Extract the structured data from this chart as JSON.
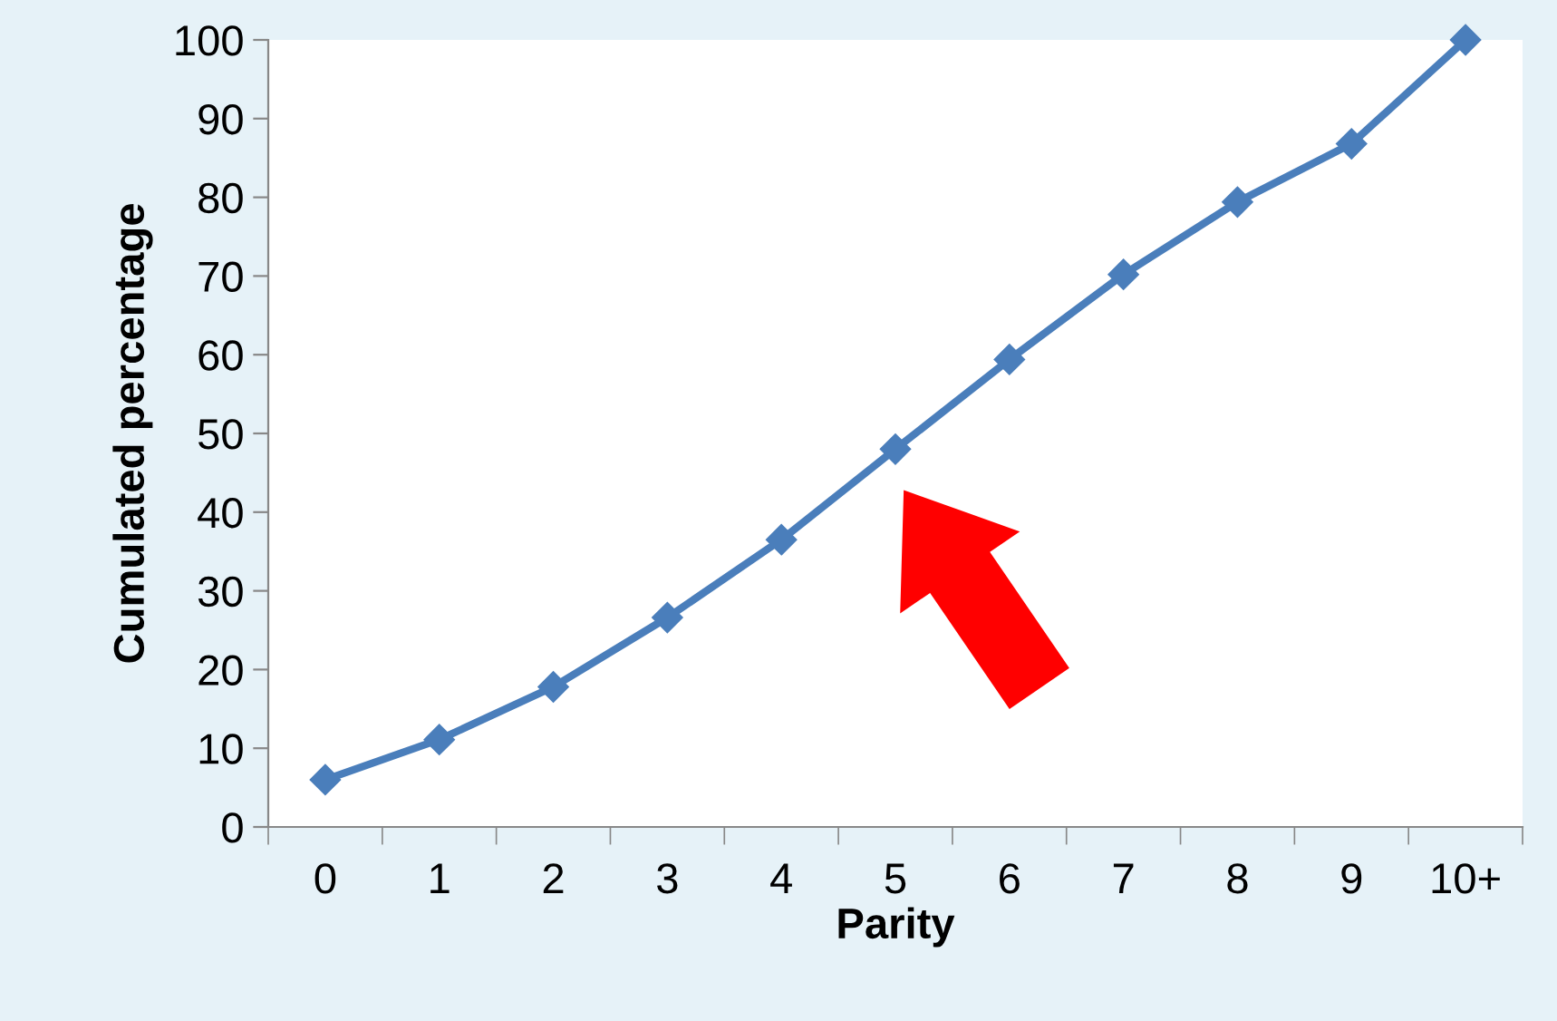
{
  "chart_data": {
    "type": "line",
    "xlabel": "Parity",
    "ylabel": "Cumulated percentage",
    "categories": [
      "0",
      "1",
      "2",
      "3",
      "4",
      "5",
      "6",
      "7",
      "8",
      "9",
      "10+"
    ],
    "series": [
      {
        "color": "#4a7ebb",
        "values": [
          6.0,
          11.1,
          17.8,
          26.6,
          36.5,
          48.0,
          59.4,
          70.2,
          79.4,
          86.8,
          100
        ]
      }
    ],
    "ylim": [
      0,
      100
    ],
    "yticks": [
      0,
      10,
      20,
      30,
      40,
      50,
      60,
      70,
      80,
      90,
      100
    ],
    "marker": "diamond",
    "line_style": "solid",
    "grid": false,
    "legend": false
  }
}
